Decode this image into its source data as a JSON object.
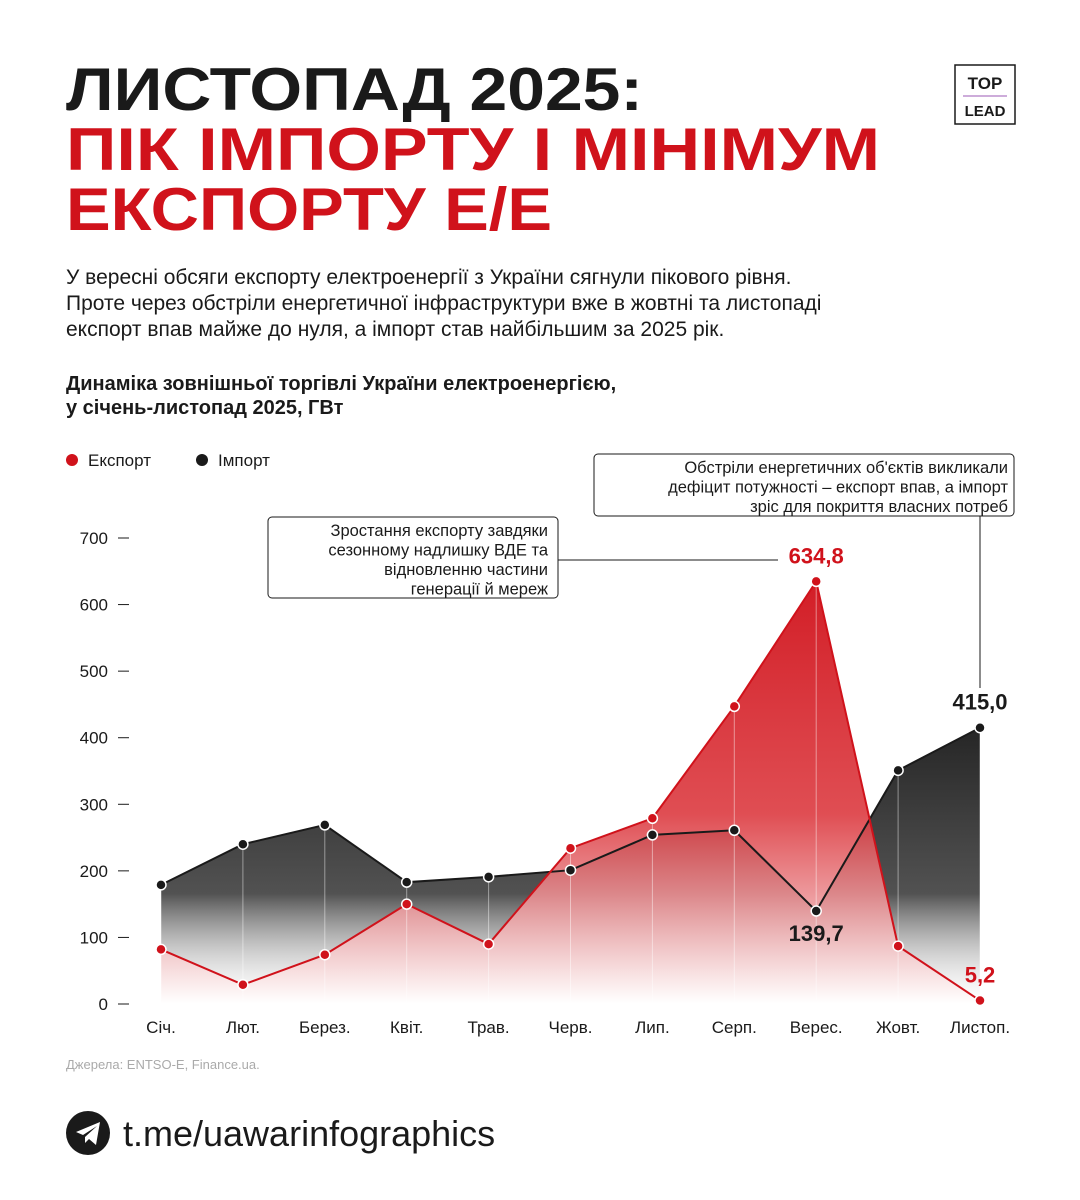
{
  "logo": {
    "top": "TOP",
    "bottom": "LEAD"
  },
  "header": {
    "title_lines": [
      "ЛИСТОПАД 2025:",
      "ПІК ІМПОРТУ І МІНІМУМ",
      "ЕКСПОРТУ Е/Е"
    ]
  },
  "intro_lines": [
    "У вересні обсяги експорту електроенергії з України сягнули пікового рівня.",
    "Проте через обстріли енергетичної інфраструктури вже в жовтні та листопаді",
    "експорт впав майже до нуля, а імпорт став найбільшим за 2025 рік."
  ],
  "chart_data": {
    "type": "area",
    "title": [
      "Динаміка зовнішньої торгівлі України електроенергією,",
      "у січень-листопад 2025, ГВт"
    ],
    "categories": [
      "Січ.",
      "Лют.",
      "Берез.",
      "Квіт.",
      "Трав.",
      "Черв.",
      "Лип.",
      "Серп.",
      "Верес.",
      "Жовт.",
      "Листоп."
    ],
    "series": [
      {
        "name": "Імпорт",
        "color": "#1a1a1a",
        "values": [
          179,
          240,
          269,
          183,
          191,
          201,
          254,
          261,
          139.7,
          351,
          415.0
        ],
        "value_labels": [
          null,
          null,
          null,
          null,
          null,
          null,
          null,
          null,
          "139,7",
          null,
          "415,0"
        ]
      },
      {
        "name": "Експорт",
        "color": "#d0121b",
        "values": [
          82,
          29,
          74,
          150,
          90,
          234,
          279,
          447,
          634.8,
          87,
          5.2
        ],
        "value_labels": [
          null,
          null,
          null,
          null,
          null,
          null,
          null,
          null,
          "634,8",
          null,
          "5,2"
        ]
      }
    ],
    "ylim": [
      0,
      700
    ],
    "yticks": [
      0,
      100,
      200,
      300,
      400,
      500,
      600,
      700
    ],
    "annotations": [
      {
        "lines": [
          "Зростання експорту завдяки",
          "сезонному надлишку ВДЕ та",
          "відновленню частини",
          "генерації й мереж"
        ]
      },
      {
        "lines": [
          "Обстріли енергетичних об'єктів викликали",
          "дефіцит потужності – експорт впав, а імпорт",
          "зріс для покриття власних потреб"
        ]
      }
    ]
  },
  "source": "Джерела: ENTSO-E, Finance.ua.",
  "footer_link": "t.me/uawarinfographics"
}
